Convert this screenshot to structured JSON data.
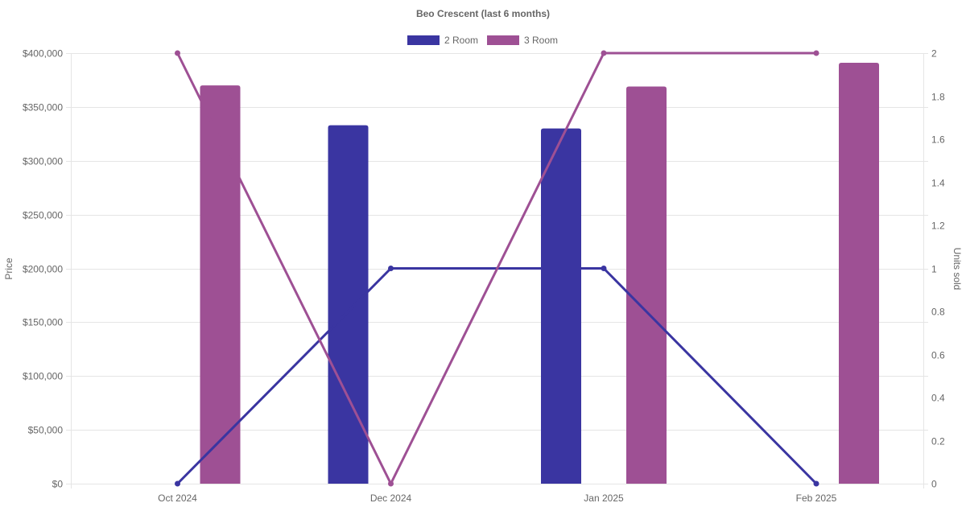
{
  "chart_data": {
    "type": "bar",
    "title": "Beo Crescent (last 6 months)",
    "categories": [
      "Oct 2024",
      "Dec 2024",
      "Jan 2025",
      "Feb 2025"
    ],
    "y_left": {
      "label": "Price",
      "ticks": [
        "$0",
        "$50,000",
        "$100,000",
        "$150,000",
        "$200,000",
        "$250,000",
        "$300,000",
        "$350,000",
        "$400,000"
      ],
      "tick_values": [
        0,
        50000,
        100000,
        150000,
        200000,
        250000,
        300000,
        350000,
        400000
      ],
      "range": [
        0,
        400000
      ]
    },
    "y_right": {
      "label": "Units sold",
      "ticks": [
        "0",
        "0.2",
        "0.4",
        "0.6",
        "0.8",
        "1",
        "1.2",
        "1.4",
        "1.6",
        "1.8",
        "2"
      ],
      "tick_values": [
        0,
        0.2,
        0.4,
        0.6,
        0.8,
        1,
        1.2,
        1.4,
        1.6,
        1.8,
        2
      ],
      "range": [
        0,
        2
      ]
    },
    "grid": true,
    "legend_position": "top",
    "series": [
      {
        "name": "2 Room",
        "color": "#3a35a1",
        "price": [
          null,
          333000,
          330000,
          null
        ],
        "units_sold": [
          0,
          1,
          1,
          0
        ]
      },
      {
        "name": "3 Room",
        "color": "#9e5094",
        "price": [
          370000,
          null,
          369000,
          391000
        ],
        "units_sold": [
          2,
          0,
          2,
          2
        ]
      }
    ]
  }
}
